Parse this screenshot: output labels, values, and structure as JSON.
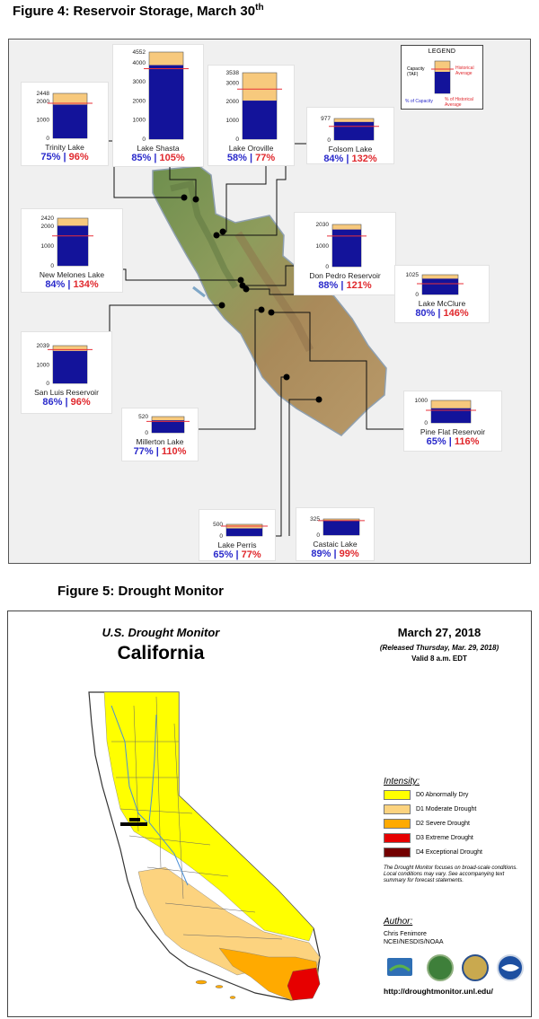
{
  "figure4": {
    "title": "Figure 4:  Reservoir Storage, March 30",
    "title_sup": "th",
    "reservoirs": [
      {
        "name": "Trinity Lake",
        "capacity": 2448,
        "storage_pct": 75,
        "historical_pct": 96,
        "ticks": [
          "2448",
          "2000",
          "1000",
          "0"
        ]
      },
      {
        "name": "Lake Shasta",
        "capacity": 4552,
        "storage_pct": 85,
        "historical_pct": 105,
        "ticks": [
          "4552",
          "4000",
          "3000",
          "2000",
          "1000",
          "0"
        ]
      },
      {
        "name": "Lake Oroville",
        "capacity": 3538,
        "storage_pct": 58,
        "historical_pct": 77,
        "ticks": [
          "3538",
          "3000",
          "2000",
          "1000",
          "0"
        ]
      },
      {
        "name": "Folsom Lake",
        "capacity": 977,
        "storage_pct": 84,
        "historical_pct": 132,
        "ticks": [
          "977",
          "0"
        ]
      },
      {
        "name": "New Melones Lake",
        "capacity": 2420,
        "storage_pct": 84,
        "historical_pct": 134,
        "ticks": [
          "2420",
          "2000",
          "1000",
          "0"
        ]
      },
      {
        "name": "Don Pedro Reservoir",
        "capacity": 2030,
        "storage_pct": 88,
        "historical_pct": 121,
        "ticks": [
          "2030",
          "1000",
          "0"
        ]
      },
      {
        "name": "Lake McClure",
        "capacity": 1025,
        "storage_pct": 80,
        "historical_pct": 146,
        "ticks": [
          "1025",
          "0"
        ]
      },
      {
        "name": "San Luis Reservoir",
        "capacity": 2039,
        "storage_pct": 86,
        "historical_pct": 96,
        "ticks": [
          "2039",
          "1000",
          "0"
        ]
      },
      {
        "name": "Millerton Lake",
        "capacity": 520,
        "storage_pct": 77,
        "historical_pct": 110,
        "ticks": [
          "520",
          "0"
        ]
      },
      {
        "name": "Pine Flat Reservoir",
        "capacity": 1000,
        "storage_pct": 65,
        "historical_pct": 116,
        "ticks": [
          "1000",
          "0"
        ]
      },
      {
        "name": "Lake Perris",
        "capacity": 500,
        "storage_pct": 65,
        "historical_pct": 77,
        "ticks": [
          "500",
          "0"
        ]
      },
      {
        "name": "Castaic Lake",
        "capacity": 325,
        "storage_pct": 89,
        "historical_pct": 99,
        "ticks": [
          "325",
          "0"
        ]
      }
    ],
    "legend": {
      "title": "LEGEND",
      "capacity": "Capacity\n(TAF)",
      "historical": "Historical\nAverage",
      "pct_capacity": "% of Capacity",
      "pct_historical": "% of Historical\nAverage"
    },
    "colors": {
      "storage": "#13139a",
      "capacity": "#f7c97d",
      "historical_line": "#e8303a",
      "pct_capacity": "#2a2acb",
      "pct_historical": "#e0282d"
    }
  },
  "figure5": {
    "title": "Figure 5:  Drought Monitor",
    "header": "U.S. Drought Monitor",
    "state": "California",
    "date": "March 27, 2018",
    "released": "(Released Thursday, Mar. 29, 2018)",
    "valid": "Valid 8 a.m. EDT",
    "intensity_title": "Intensity:",
    "intensity": [
      {
        "label": "D0 Abnormally Dry",
        "color": "#ffff00"
      },
      {
        "label": "D1 Moderate Drought",
        "color": "#fcd37f"
      },
      {
        "label": "D2 Severe Drought",
        "color": "#ffaa00"
      },
      {
        "label": "D3 Extreme Drought",
        "color": "#e60000"
      },
      {
        "label": "D4 Exceptional Drought",
        "color": "#730000"
      }
    ],
    "note": "The Drought Monitor focuses on broad-scale conditions. Local conditions may vary. See accompanying text summary for forecast statements.",
    "author_title": "Author:",
    "author_name": "Chris Fenimore",
    "author_org": "NCEI/NESDIS/NOAA",
    "url": "http://droughtmonitor.unl.edu/",
    "logos": [
      "usda-logo",
      "ndmc-logo",
      "commerce-logo",
      "noaa-logo"
    ]
  }
}
